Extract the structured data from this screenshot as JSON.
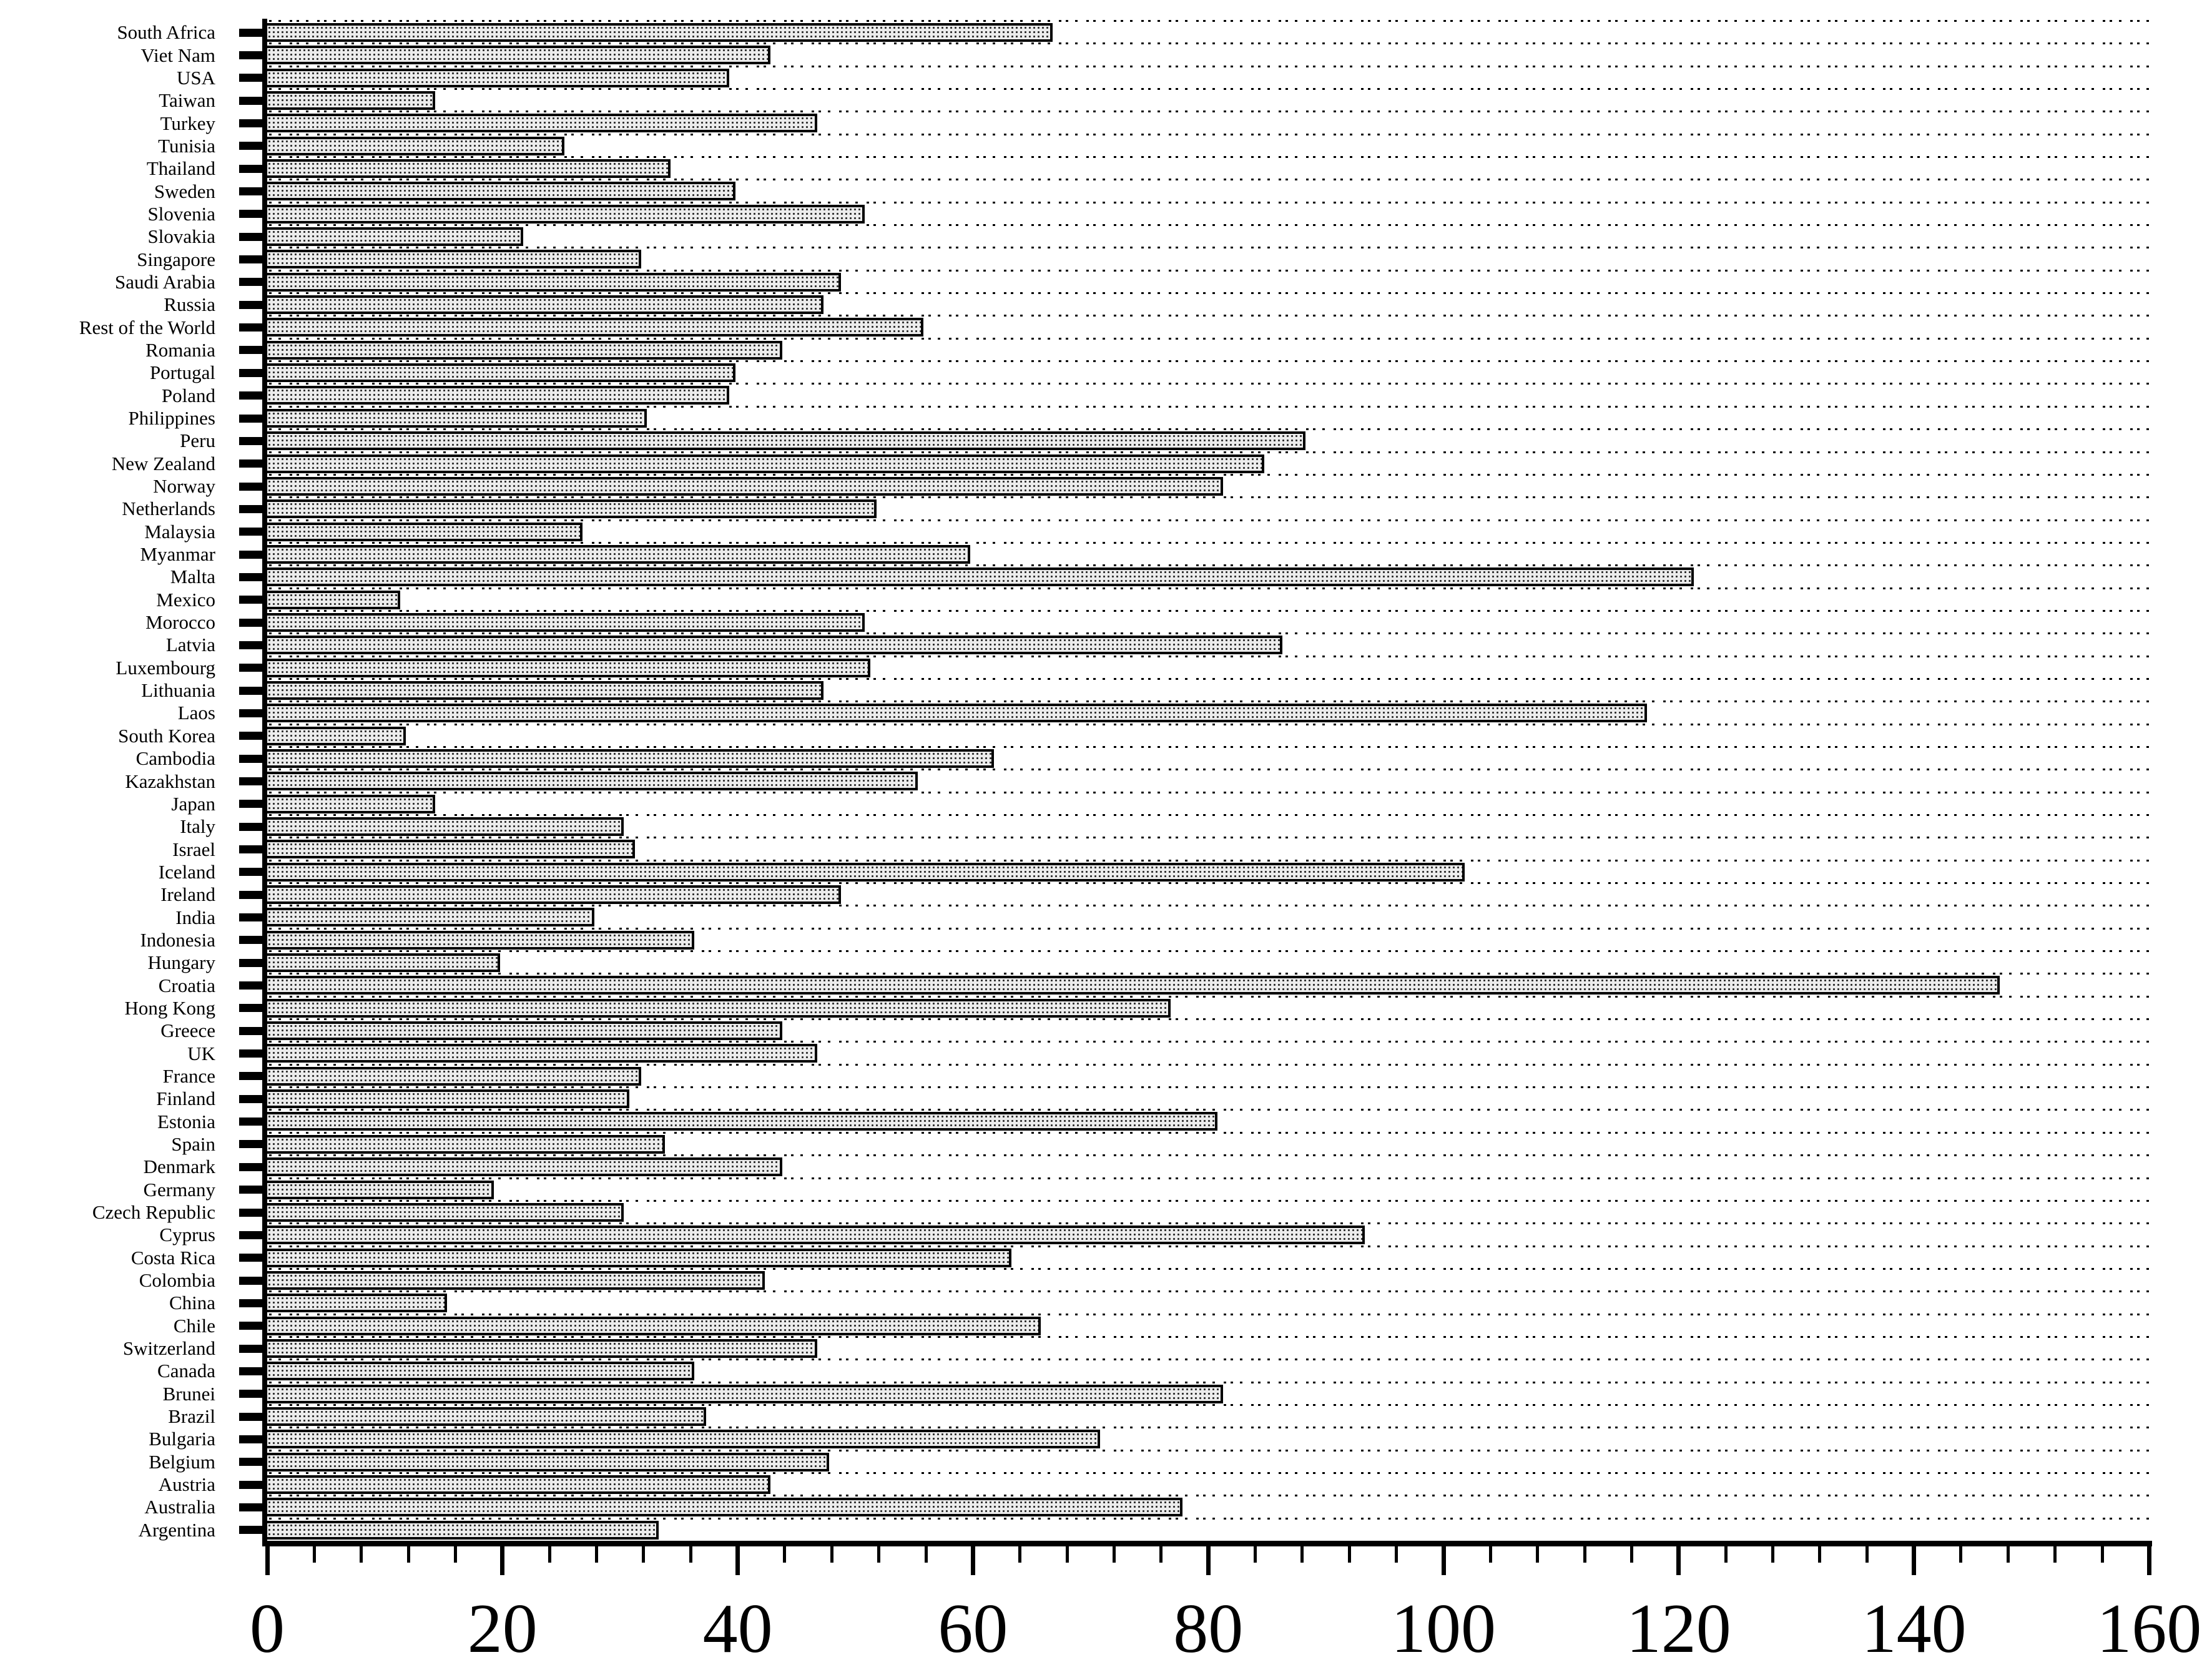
{
  "chart_data": {
    "type": "bar",
    "orientation": "horizontal",
    "title": "",
    "xlabel": "",
    "ylabel": "",
    "xlim": [
      0,
      160
    ],
    "x_major_ticks": [
      0,
      20,
      40,
      60,
      80,
      100,
      120,
      140,
      160
    ],
    "x_tick_labels": [
      "0",
      "20",
      "40",
      "60",
      "80",
      "100",
      "120",
      "140",
      "160"
    ],
    "x_minor_tick_step": 4,
    "grid": "horizontal-dashed",
    "legend": "none",
    "colors": {
      "background": "#ffffff",
      "bar_fill": "#ececec",
      "bar_pattern_dot": "#2a2a2a",
      "bar_border": "#000000",
      "axis": "#000000",
      "gridline": "#000000",
      "text": "#000000"
    },
    "categories": [
      "South Africa",
      "Viet Nam",
      "USA",
      "Taiwan",
      "Turkey",
      "Tunisia",
      "Thailand",
      "Sweden",
      "Slovenia",
      "Slovakia",
      "Singapore",
      "Saudi Arabia",
      "Russia",
      "Rest of the World",
      "Romania",
      "Portugal",
      "Poland",
      "Philippines",
      "Peru",
      "New Zealand",
      "Norway",
      "Netherlands",
      "Malaysia",
      "Myanmar",
      "Malta",
      "Mexico",
      "Morocco",
      "Latvia",
      "Luxembourg",
      "Lithuania",
      "Laos",
      "South Korea",
      "Cambodia",
      "Kazakhstan",
      "Japan",
      "Italy",
      "Israel",
      "Iceland",
      "Ireland",
      "India",
      "Indonesia",
      "Hungary",
      "Croatia",
      "Hong Kong",
      "Greece",
      "UK",
      "France",
      "Finland",
      "Estonia",
      "Spain",
      "Denmark",
      "Germany",
      "Czech Republic",
      "Cyprus",
      "Costa Rica",
      "Colombia",
      "China",
      "Chile",
      "Switzerland",
      "Canada",
      "Brunei",
      "Brazil",
      "Bulgaria",
      "Belgium",
      "Austria",
      "Australia",
      "Argentina"
    ],
    "values": [
      67,
      43,
      39.5,
      14.5,
      47,
      25.5,
      34.5,
      40,
      51,
      22,
      32,
      49,
      47.5,
      56,
      44,
      40,
      39.5,
      32.5,
      88.5,
      85,
      81.5,
      52,
      27,
      60,
      121.5,
      11.5,
      51,
      86.5,
      51.5,
      47.5,
      117.5,
      12,
      62,
      55.5,
      14.5,
      30.5,
      31.5,
      102,
      49,
      28,
      36.5,
      20,
      147.5,
      77,
      44,
      47,
      32,
      31,
      81,
      34,
      44,
      19.5,
      30.5,
      93.5,
      63.5,
      42.5,
      15.5,
      66,
      47,
      36.5,
      81.5,
      37.5,
      71,
      48,
      43,
      78,
      33.5
    ]
  }
}
